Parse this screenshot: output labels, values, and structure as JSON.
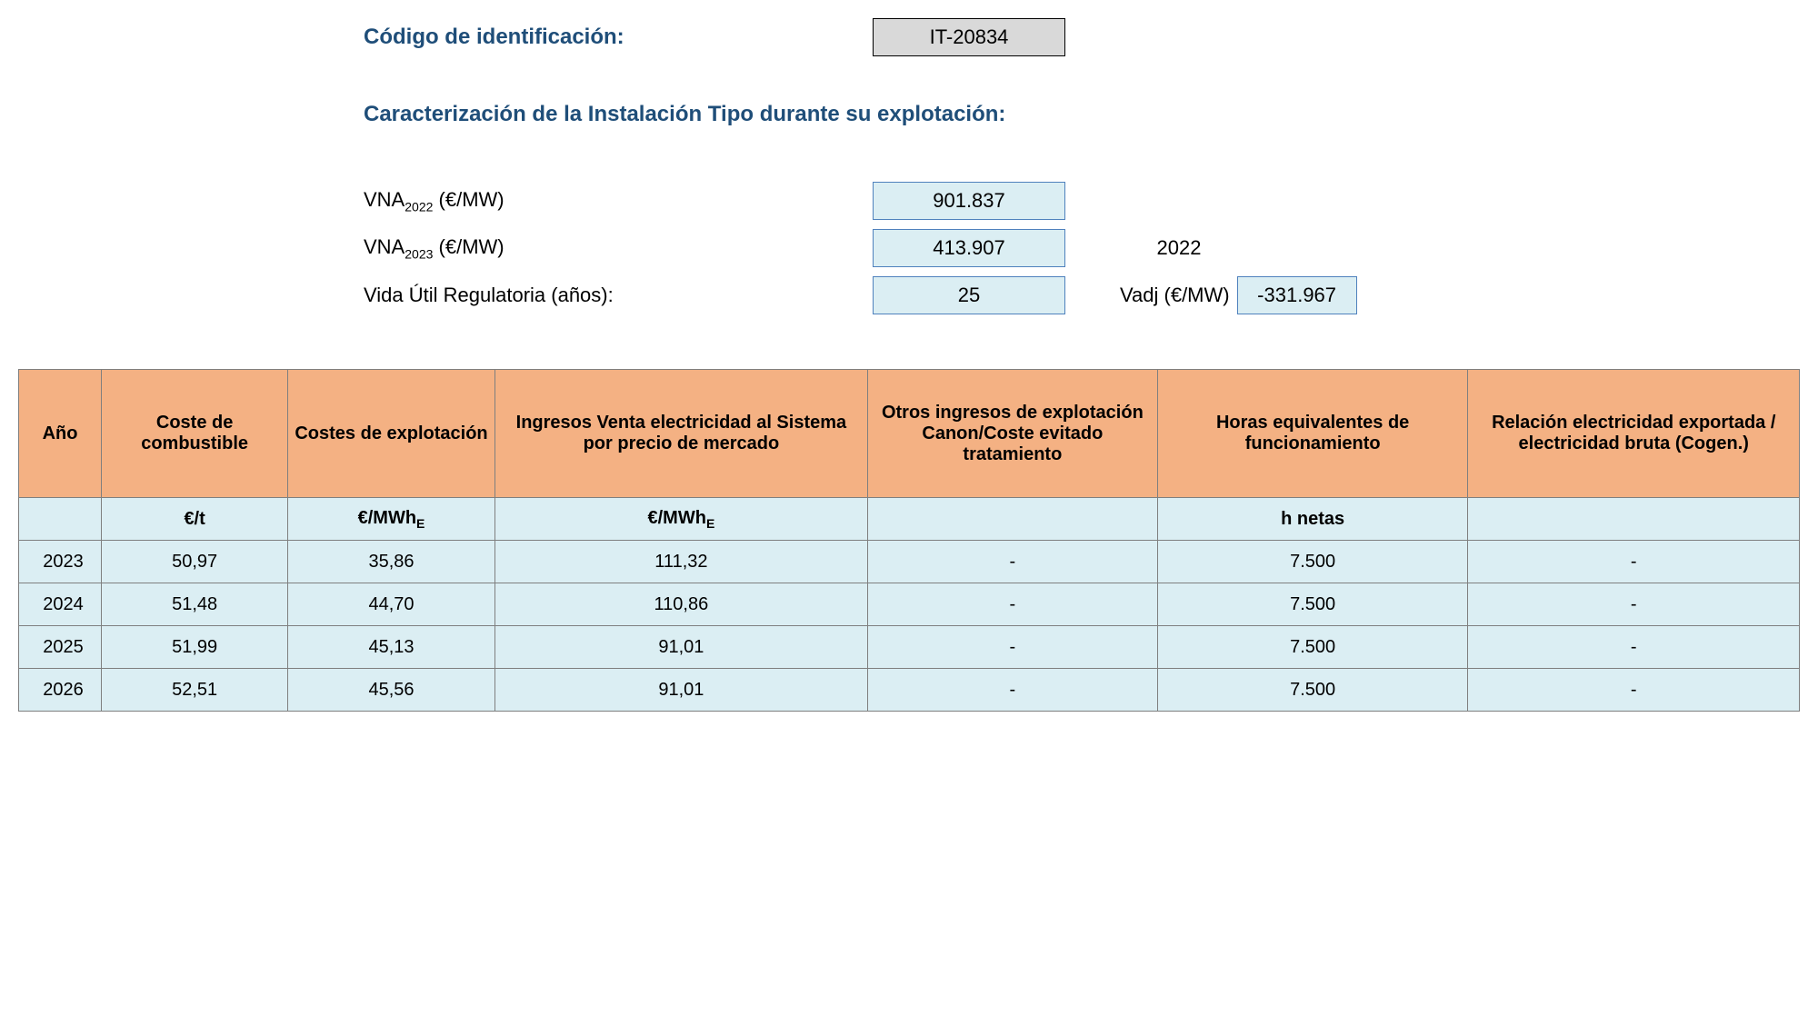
{
  "header": {
    "code_label": "Código de identificación:",
    "code_value": "IT-20834",
    "section_title": "Caracterización de la Instalación Tipo durante su explotación:",
    "vna2022_label": "VNA",
    "vna2022_sub": "2022",
    "vna_units": " (€/MW)",
    "vna2022_value": "901.837",
    "vna2023_label": "VNA",
    "vna2023_sub": "2023",
    "vna2023_value": "413.907",
    "year_ref": "2022",
    "life_label": "Vida Útil Regulatoria (años):",
    "life_value": "25",
    "vadj_label": "Vadj (€/MW)",
    "vadj_value": "-331.967"
  },
  "table": {
    "columns": [
      "Año",
      "Coste de combustible",
      "Costes de explotación",
      "Ingresos Venta electricidad al Sistema por precio de mercado",
      "Otros ingresos de explotación Canon/Coste evitado tratamiento",
      "Horas equivalentes de funcionamiento",
      "Relación electricidad exportada / electricidad bruta (Cogen.)"
    ],
    "units": [
      "",
      "€/t",
      "€/MWh",
      "€/MWh",
      "",
      "h netas",
      ""
    ],
    "unit_sub": "E",
    "rows": [
      {
        "year": "2023",
        "fuel": "50,97",
        "opex": "35,86",
        "rev": "111,32",
        "other": "-",
        "hours": "7.500",
        "ratio": "-"
      },
      {
        "year": "2024",
        "fuel": "51,48",
        "opex": "44,70",
        "rev": "110,86",
        "other": "-",
        "hours": "7.500",
        "ratio": "-"
      },
      {
        "year": "2025",
        "fuel": "51,99",
        "opex": "45,13",
        "rev": "91,01",
        "other": "-",
        "hours": "7.500",
        "ratio": "-"
      },
      {
        "year": "2026",
        "fuel": "52,51",
        "opex": "45,56",
        "rev": "91,01",
        "other": "-",
        "hours": "7.500",
        "ratio": "-"
      }
    ],
    "header_bg": "#f4b183",
    "body_bg": "#dbeef3",
    "border_color": "#7f7f7f"
  }
}
